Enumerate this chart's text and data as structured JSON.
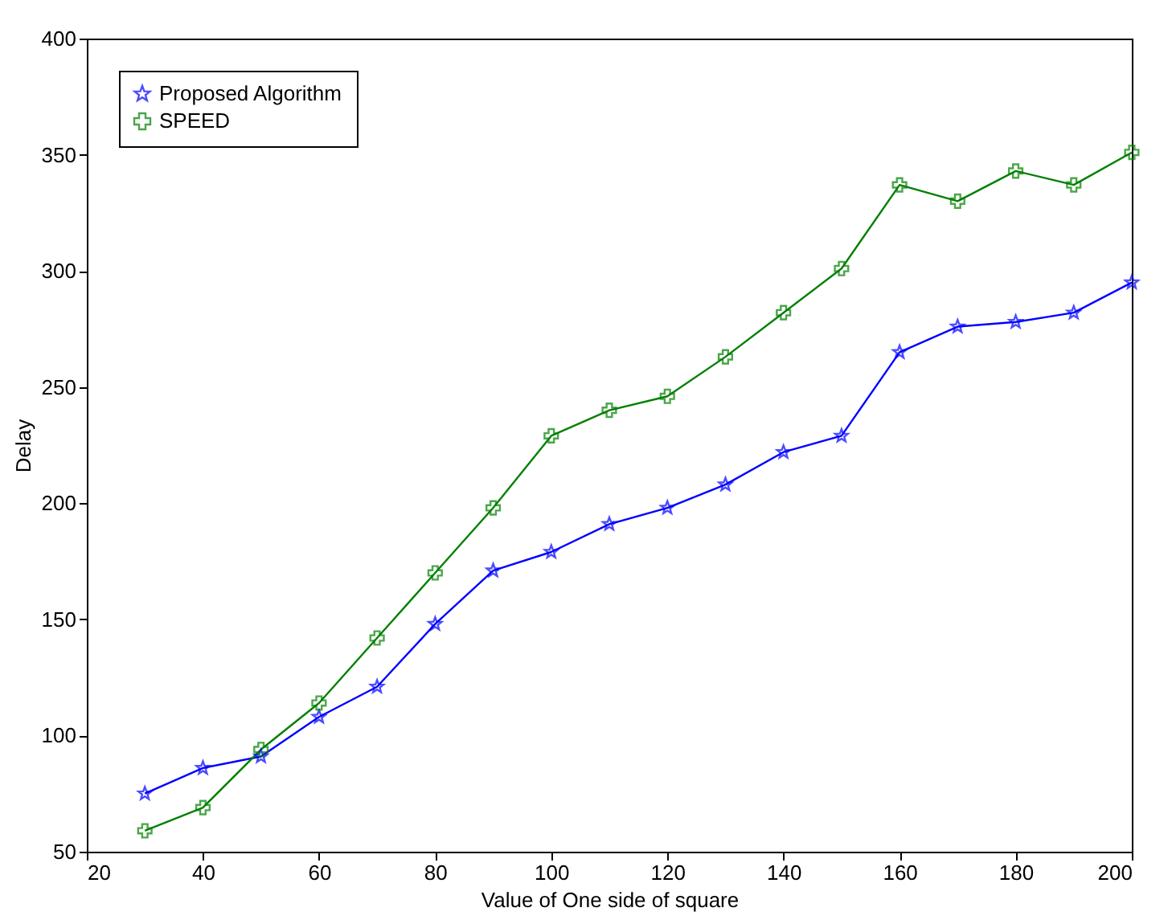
{
  "chart_data": {
    "type": "line",
    "xlabel": "Value of One side of square",
    "ylabel": "Delay",
    "x": [
      30,
      40,
      50,
      60,
      70,
      80,
      90,
      100,
      110,
      120,
      130,
      140,
      150,
      160,
      170,
      180,
      190,
      200
    ],
    "series": [
      {
        "name": "Proposed Algorithm",
        "color": "#0000ff",
        "marker": "star",
        "values": [
          75,
          86,
          91,
          108,
          121,
          148,
          171,
          179,
          191,
          198,
          208,
          222,
          229,
          265,
          276,
          278,
          282,
          295
        ]
      },
      {
        "name": "SPEED",
        "color": "#008000",
        "marker": "cross",
        "values": [
          59,
          69,
          94,
          114,
          142,
          170,
          198,
          229,
          240,
          246,
          263,
          282,
          301,
          337,
          330,
          343,
          337,
          351
        ]
      }
    ],
    "xlim": [
      20,
      200
    ],
    "xticks": [
      20,
      40,
      60,
      80,
      100,
      120,
      140,
      160,
      180,
      200
    ],
    "ylim": [
      50,
      400
    ],
    "yticks": [
      50,
      100,
      150,
      200,
      250,
      300,
      350,
      400
    ],
    "grid": false,
    "legend": "top left",
    "line_style": "solid"
  }
}
